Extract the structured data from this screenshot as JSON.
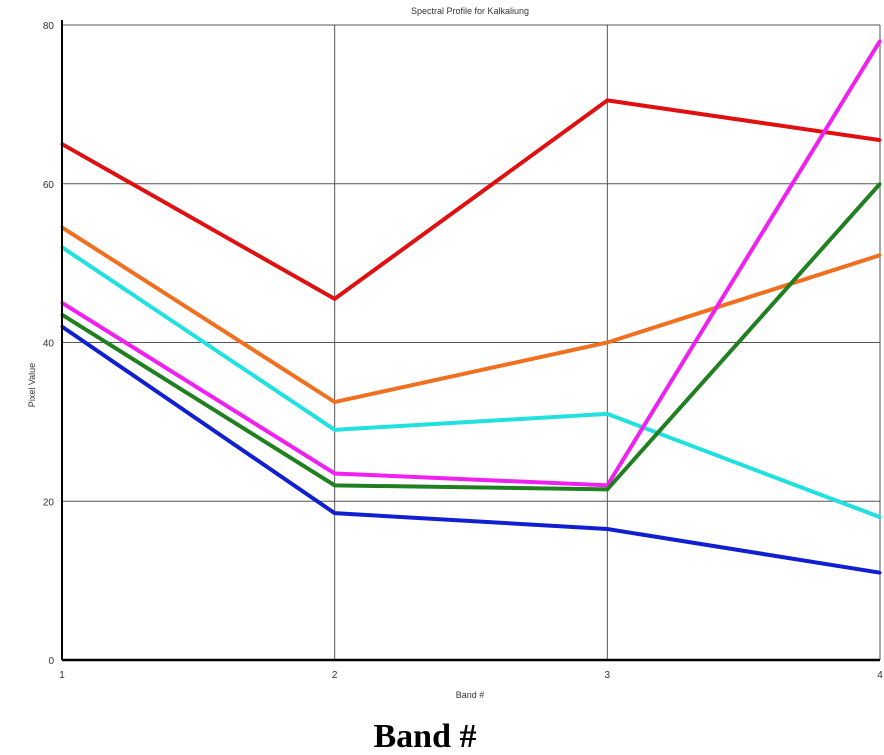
{
  "chart_data": {
    "type": "line",
    "title": "Spectral Profile for Kalkaliung",
    "xlabel": "Band #",
    "ylabel": "Pixel Value",
    "caption": "Band #",
    "x": [
      1,
      2,
      3,
      4
    ],
    "xlim": [
      1,
      4
    ],
    "ylim": [
      0,
      80
    ],
    "yticks": [
      0,
      20,
      40,
      60,
      80
    ],
    "grid": true,
    "series": [
      {
        "color": "#e01010",
        "values": [
          65,
          45.5,
          70.5,
          65.5
        ]
      },
      {
        "color": "#f07020",
        "values": [
          54.5,
          32.5,
          40,
          51
        ]
      },
      {
        "color": "#20e0e0",
        "values": [
          52,
          29,
          31,
          18
        ]
      },
      {
        "color": "#f020f0",
        "values": [
          45,
          23.5,
          22,
          78
        ]
      },
      {
        "color": "#208020",
        "values": [
          43.5,
          22,
          21.5,
          60
        ]
      },
      {
        "color": "#1020d0",
        "values": [
          42,
          18.5,
          16.5,
          11
        ]
      }
    ]
  }
}
